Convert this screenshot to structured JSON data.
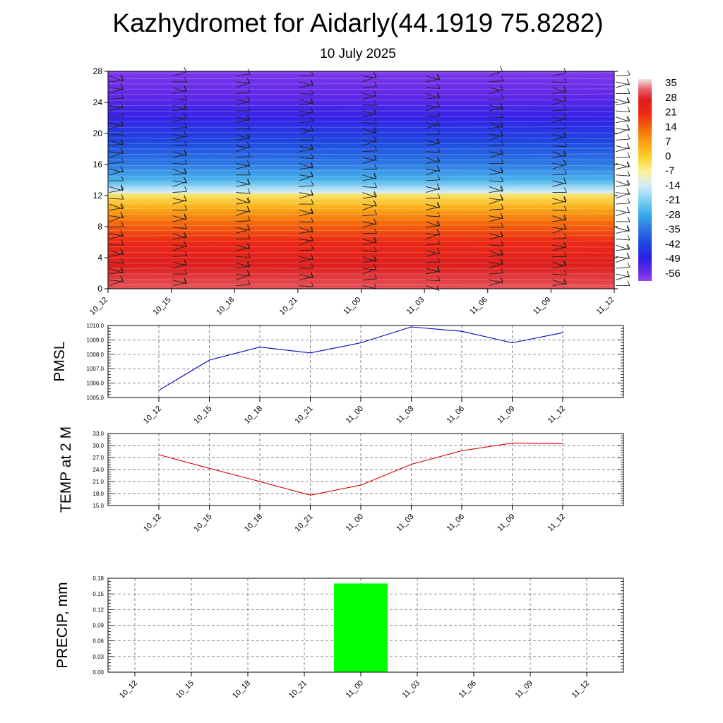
{
  "header": {
    "title": "Kazhydromet for Aidarly(44.1919 75.8282)",
    "subtitle": "10 July 2025"
  },
  "chart_data": [
    {
      "type": "heatmap",
      "name": "vertical temperature cross-section with wind barbs",
      "x_ticks": [
        "10_12",
        "10_15",
        "10_18",
        "10_21",
        "11_00",
        "11_03",
        "11_06",
        "11_09",
        "11_12"
      ],
      "y_ticks": [
        "0",
        "4",
        "8",
        "12",
        "16",
        "20",
        "24",
        "28"
      ],
      "ylim": [
        0,
        28
      ],
      "colorbar_labels": [
        "35",
        "28",
        "21",
        "14",
        "7",
        "0",
        "-7",
        "-14",
        "-21",
        "-28",
        "-35",
        "-42",
        "-49",
        "-56"
      ],
      "colorbar_range": [
        -60,
        38
      ],
      "profile": [
        {
          "height": 0,
          "temp": 32
        },
        {
          "height": 3,
          "temp": 28
        },
        {
          "height": 6,
          "temp": 22
        },
        {
          "height": 8.5,
          "temp": 14
        },
        {
          "height": 10.5,
          "temp": 5
        },
        {
          "height": 12,
          "temp": -3
        },
        {
          "height": 12.5,
          "temp": -14
        },
        {
          "height": 14,
          "temp": -26
        },
        {
          "height": 16,
          "temp": -34
        },
        {
          "height": 19,
          "temp": -42
        },
        {
          "height": 22,
          "temp": -50
        },
        {
          "height": 25,
          "temp": -55
        },
        {
          "height": 28,
          "temp": -58
        }
      ]
    },
    {
      "type": "line",
      "ylabel": "PMSL",
      "categories": [
        "10_12",
        "10_15",
        "10_18",
        "10_21",
        "11_00",
        "11_03",
        "11_06",
        "11_09",
        "11_12"
      ],
      "values": [
        1005.5,
        1007.6,
        1008.5,
        1008.1,
        1008.8,
        1009.9,
        1009.6,
        1008.8,
        1009.5
      ],
      "ylim": [
        1005.0,
        1010.0
      ],
      "y_ticks": [
        "1005.0",
        "1006.0",
        "1007.0",
        "1008.0",
        "1009.0",
        "1010.0"
      ],
      "color": "#0000cc",
      "grid": true
    },
    {
      "type": "line",
      "ylabel": "TEMP at 2 M",
      "categories": [
        "10_12",
        "10_15",
        "10_18",
        "10_21",
        "11_00",
        "11_03",
        "11_06",
        "11_09",
        "11_12"
      ],
      "values": [
        27.7,
        24.3,
        21.0,
        17.6,
        20.1,
        25.3,
        28.7,
        30.6,
        30.5
      ],
      "ylim": [
        15.0,
        33.0
      ],
      "y_ticks": [
        "15.0",
        "18.0",
        "21.0",
        "24.0",
        "27.0",
        "30.0",
        "33.0"
      ],
      "color": "#dd0000",
      "grid": true
    },
    {
      "type": "bar",
      "ylabel": "PRECIP, mm",
      "categories": [
        "10_12",
        "10_15",
        "10_18",
        "10_21",
        "11_00",
        "11_03",
        "11_06",
        "11_09",
        "11_12"
      ],
      "values": [
        0,
        0,
        0,
        0,
        0.17,
        0,
        0,
        0,
        0
      ],
      "ylim": [
        0,
        0.18
      ],
      "y_ticks": [
        "0.00",
        "0.03",
        "0.06",
        "0.09",
        "0.12",
        "0.15",
        "0.18"
      ],
      "color": "#00ff00",
      "grid": true
    }
  ]
}
